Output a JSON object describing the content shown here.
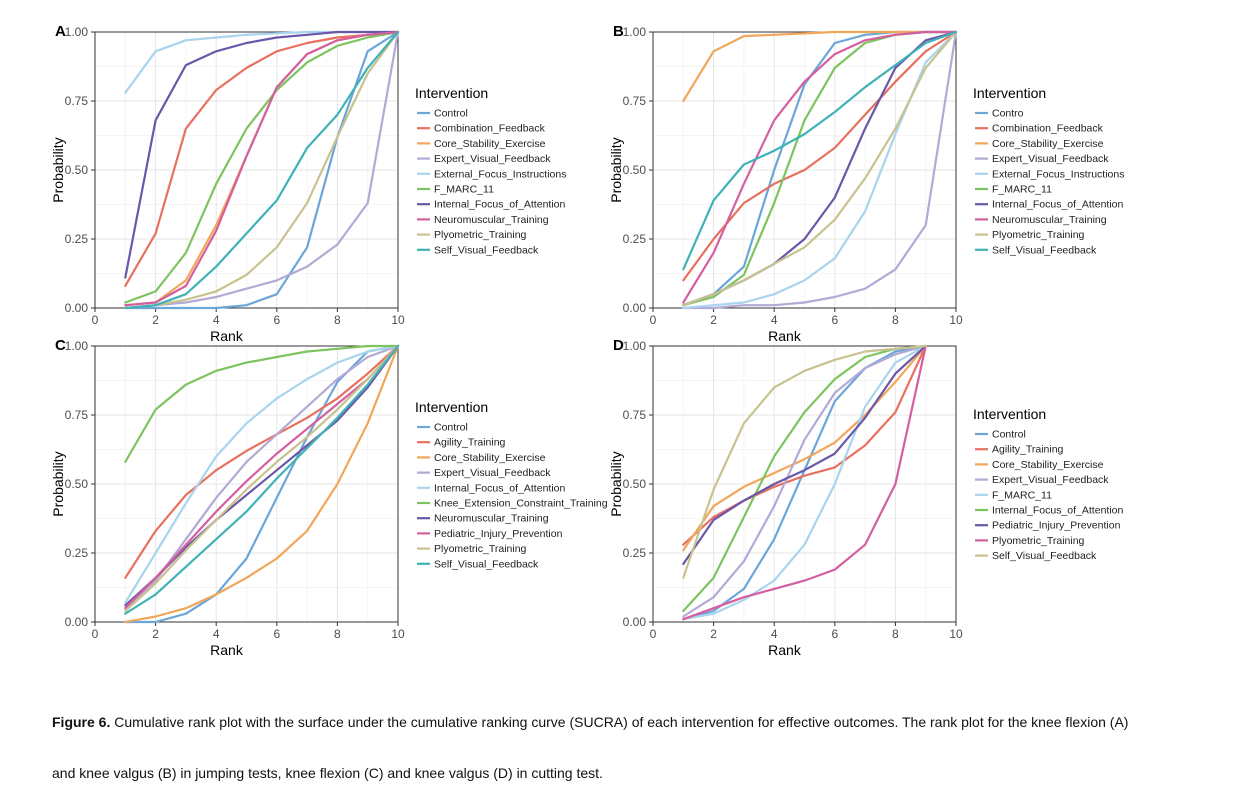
{
  "figure": {
    "label": "Figure 6.",
    "caption_line1": "Cumulative rank plot with the surface under the cumulative ranking curve (SUCRA) of each intervention for effective outcomes. The rank plot for the knee flexion (A)",
    "caption_line2": "and knee valgus (B) in jumping tests, knee flexion (C) and knee valgus (D) in cutting test."
  },
  "chart_data": [
    {
      "panel": "A",
      "type": "line",
      "xlabel": "Rank",
      "ylabel": "Probability",
      "xlim": [
        0,
        10
      ],
      "ylim": [
        0,
        1
      ],
      "xticks": [
        0,
        2,
        4,
        6,
        8,
        10
      ],
      "yticks": [
        "0.00",
        "0.25",
        "0.50",
        "0.75",
        "1.00"
      ],
      "legend_title": "Intervention",
      "x": [
        1,
        2,
        3,
        4,
        5,
        6,
        7,
        8,
        9,
        10
      ],
      "series": [
        {
          "name": "Control",
          "color": "#6aa6d8",
          "values": [
            0.0,
            0.0,
            0.0,
            0.0,
            0.01,
            0.05,
            0.22,
            0.62,
            0.93,
            1.0
          ]
        },
        {
          "name": "Combination_Feedback",
          "color": "#e8705f",
          "values": [
            0.08,
            0.27,
            0.65,
            0.79,
            0.87,
            0.93,
            0.96,
            0.98,
            0.99,
            1.0
          ]
        },
        {
          "name": "Core_Stability_Exercise",
          "color": "#f2a65a",
          "values": [
            0.01,
            0.02,
            0.1,
            0.3,
            0.55,
            0.8,
            0.92,
            0.97,
            0.99,
            1.0
          ]
        },
        {
          "name": "Expert_Visual_Feedback",
          "color": "#b2a9d6",
          "values": [
            0.0,
            0.01,
            0.02,
            0.04,
            0.07,
            0.1,
            0.15,
            0.23,
            0.38,
            1.0
          ]
        },
        {
          "name": "External_Focus_Instructions",
          "color": "#a8d4ee",
          "values": [
            0.78,
            0.93,
            0.97,
            0.98,
            0.99,
            0.995,
            1.0,
            1.0,
            1.0,
            1.0
          ]
        },
        {
          "name": "F_MARC_11",
          "color": "#7dc460",
          "values": [
            0.02,
            0.06,
            0.2,
            0.45,
            0.65,
            0.79,
            0.89,
            0.95,
            0.98,
            1.0
          ]
        },
        {
          "name": "Internal_Focus_of_Attention",
          "color": "#6b57a8",
          "values": [
            0.11,
            0.68,
            0.88,
            0.93,
            0.96,
            0.98,
            0.99,
            1.0,
            1.0,
            1.0
          ]
        },
        {
          "name": "Neuromuscular_Training",
          "color": "#d45fa0",
          "values": [
            0.01,
            0.02,
            0.08,
            0.28,
            0.55,
            0.8,
            0.92,
            0.97,
            0.99,
            1.0
          ]
        },
        {
          "name": "Plyometric_Training",
          "color": "#c8c28e",
          "values": [
            0.0,
            0.01,
            0.03,
            0.06,
            0.12,
            0.22,
            0.38,
            0.62,
            0.85,
            1.0
          ]
        },
        {
          "name": "Self_Visual_Feedback",
          "color": "#3fb2b8",
          "values": [
            0.0,
            0.01,
            0.05,
            0.15,
            0.27,
            0.39,
            0.58,
            0.7,
            0.87,
            1.0
          ]
        }
      ]
    },
    {
      "panel": "B",
      "type": "line",
      "xlabel": "Rank",
      "ylabel": "Probability",
      "xlim": [
        0,
        10
      ],
      "ylim": [
        0,
        1
      ],
      "xticks": [
        0,
        2,
        4,
        6,
        8,
        10
      ],
      "yticks": [
        "0.00",
        "0.25",
        "0.50",
        "0.75",
        "1.00"
      ],
      "legend_title": "Intervention",
      "x": [
        1,
        2,
        3,
        4,
        5,
        6,
        7,
        8,
        9,
        10
      ],
      "series": [
        {
          "name": "Contro",
          "color": "#6aa6d8",
          "values": [
            0.01,
            0.05,
            0.15,
            0.5,
            0.81,
            0.96,
            0.99,
            1.0,
            1.0,
            1.0
          ]
        },
        {
          "name": "Combination_Feedback",
          "color": "#e8705f",
          "values": [
            0.1,
            0.25,
            0.38,
            0.45,
            0.5,
            0.58,
            0.7,
            0.82,
            0.93,
            1.0
          ]
        },
        {
          "name": "Core_Stability_Exercise",
          "color": "#f2a65a",
          "values": [
            0.75,
            0.93,
            0.985,
            0.99,
            0.995,
            1.0,
            1.0,
            1.0,
            1.0,
            1.0
          ]
        },
        {
          "name": "Expert_Visual_Feedback",
          "color": "#b2a9d6",
          "values": [
            0.0,
            0.0,
            0.01,
            0.01,
            0.02,
            0.04,
            0.07,
            0.14,
            0.3,
            1.0
          ]
        },
        {
          "name": "External_Focus_Instructions",
          "color": "#a8d4ee",
          "values": [
            0.0,
            0.01,
            0.02,
            0.05,
            0.1,
            0.18,
            0.35,
            0.63,
            0.89,
            1.0
          ]
        },
        {
          "name": "F_MARC_11",
          "color": "#7dc460",
          "values": [
            0.01,
            0.04,
            0.12,
            0.38,
            0.68,
            0.87,
            0.96,
            0.99,
            1.0,
            1.0
          ]
        },
        {
          "name": "Internal_Focus_of_Attention",
          "color": "#6b57a8",
          "values": [
            0.01,
            0.05,
            0.1,
            0.16,
            0.25,
            0.4,
            0.65,
            0.87,
            0.97,
            1.0
          ]
        },
        {
          "name": "Neuromuscular_Training",
          "color": "#d45fa0",
          "values": [
            0.02,
            0.2,
            0.45,
            0.68,
            0.82,
            0.92,
            0.97,
            0.99,
            1.0,
            1.0
          ]
        },
        {
          "name": "Plyometric_Training",
          "color": "#c8c28e",
          "values": [
            0.01,
            0.05,
            0.1,
            0.16,
            0.22,
            0.32,
            0.47,
            0.65,
            0.87,
            1.0
          ]
        },
        {
          "name": "Self_Visual_Feedback",
          "color": "#3fb2b8",
          "values": [
            0.14,
            0.39,
            0.52,
            0.57,
            0.63,
            0.71,
            0.8,
            0.88,
            0.96,
            1.0
          ]
        }
      ]
    },
    {
      "panel": "C",
      "type": "line",
      "xlabel": "Rank",
      "ylabel": "Probability",
      "xlim": [
        0,
        10
      ],
      "ylim": [
        0,
        1
      ],
      "xticks": [
        0,
        2,
        4,
        6,
        8,
        10
      ],
      "yticks": [
        "0.00",
        "0.25",
        "0.50",
        "0.75",
        "1.00"
      ],
      "legend_title": "Intervention",
      "x": [
        1,
        2,
        3,
        4,
        5,
        6,
        7,
        8,
        9,
        10
      ],
      "series": [
        {
          "name": "Control",
          "color": "#6aa6d8",
          "values": [
            0.0,
            0.0,
            0.03,
            0.1,
            0.23,
            0.45,
            0.67,
            0.87,
            0.98,
            1.0
          ]
        },
        {
          "name": "Agility_Training",
          "color": "#e8705f",
          "values": [
            0.16,
            0.33,
            0.46,
            0.55,
            0.62,
            0.68,
            0.74,
            0.81,
            0.9,
            1.0
          ]
        },
        {
          "name": "Core_Stability_Exercise",
          "color": "#f2a65a",
          "values": [
            0.0,
            0.02,
            0.05,
            0.1,
            0.16,
            0.23,
            0.33,
            0.5,
            0.72,
            1.0
          ]
        },
        {
          "name": "Expert_Visual_Feedback",
          "color": "#b2a9d6",
          "values": [
            0.05,
            0.15,
            0.3,
            0.45,
            0.58,
            0.68,
            0.78,
            0.88,
            0.96,
            1.0
          ]
        },
        {
          "name": "Internal_Focus_of_Attention",
          "color": "#a8d4ee",
          "values": [
            0.07,
            0.25,
            0.43,
            0.6,
            0.72,
            0.81,
            0.88,
            0.94,
            0.98,
            1.0
          ]
        },
        {
          "name": "Knee_Extension_Constraint_Training",
          "color": "#7dc460",
          "values": [
            0.58,
            0.77,
            0.86,
            0.91,
            0.94,
            0.96,
            0.98,
            0.99,
            1.0,
            1.0
          ]
        },
        {
          "name": "Neuromuscular_Training",
          "color": "#6b57a8",
          "values": [
            0.06,
            0.16,
            0.27,
            0.37,
            0.46,
            0.55,
            0.64,
            0.73,
            0.85,
            1.0
          ]
        },
        {
          "name": "Pediatric_Injury_Prevention",
          "color": "#d45fa0",
          "values": [
            0.05,
            0.16,
            0.28,
            0.4,
            0.51,
            0.61,
            0.7,
            0.79,
            0.88,
            1.0
          ]
        },
        {
          "name": "Plyometric_Training",
          "color": "#c8c28e",
          "values": [
            0.04,
            0.14,
            0.26,
            0.37,
            0.48,
            0.58,
            0.67,
            0.77,
            0.88,
            1.0
          ]
        },
        {
          "name": "Self_Visual_Feedback",
          "color": "#3fb2b8",
          "values": [
            0.03,
            0.1,
            0.2,
            0.3,
            0.4,
            0.52,
            0.63,
            0.74,
            0.86,
            1.0
          ]
        }
      ]
    },
    {
      "panel": "D",
      "type": "line",
      "xlabel": "Rank",
      "ylabel": "Probability",
      "xlim": [
        0,
        10
      ],
      "ylim": [
        0,
        1
      ],
      "xticks": [
        0,
        2,
        4,
        6,
        8,
        10
      ],
      "yticks": [
        "0.00",
        "0.25",
        "0.50",
        "0.75",
        "1.00"
      ],
      "legend_title": "Intervention",
      "x": [
        1,
        2,
        3,
        4,
        5,
        6,
        7,
        8,
        9
      ],
      "series": [
        {
          "name": "Control",
          "color": "#6aa6d8",
          "values": [
            0.01,
            0.04,
            0.12,
            0.3,
            0.55,
            0.8,
            0.92,
            0.98,
            1.0
          ]
        },
        {
          "name": "Agility_Training",
          "color": "#e8705f",
          "values": [
            0.28,
            0.38,
            0.44,
            0.49,
            0.53,
            0.56,
            0.64,
            0.76,
            1.0
          ]
        },
        {
          "name": "Core_Stability_Exercise",
          "color": "#f2a65a",
          "values": [
            0.26,
            0.42,
            0.49,
            0.54,
            0.59,
            0.65,
            0.75,
            0.87,
            1.0
          ]
        },
        {
          "name": "Expert_Visual_Feedback",
          "color": "#b2a9d6",
          "values": [
            0.02,
            0.09,
            0.22,
            0.42,
            0.66,
            0.83,
            0.92,
            0.97,
            1.0
          ]
        },
        {
          "name": "F_MARC_11",
          "color": "#a8d4ee",
          "values": [
            0.01,
            0.03,
            0.08,
            0.15,
            0.28,
            0.5,
            0.78,
            0.94,
            1.0
          ]
        },
        {
          "name": "Internal_Focus_of_Attention",
          "color": "#7dc460",
          "values": [
            0.04,
            0.16,
            0.38,
            0.6,
            0.76,
            0.88,
            0.96,
            0.99,
            1.0
          ]
        },
        {
          "name": "Pediatric_Injury_Prevention",
          "color": "#6b57a8",
          "values": [
            0.21,
            0.37,
            0.44,
            0.5,
            0.55,
            0.61,
            0.74,
            0.9,
            1.0
          ]
        },
        {
          "name": "Plyometric_Training",
          "color": "#d45fa0",
          "values": [
            0.01,
            0.05,
            0.09,
            0.12,
            0.15,
            0.19,
            0.28,
            0.5,
            1.0
          ]
        },
        {
          "name": "Self_Visual_Feedback",
          "color": "#c8c28e",
          "values": [
            0.16,
            0.48,
            0.72,
            0.85,
            0.91,
            0.95,
            0.98,
            0.99,
            1.0
          ]
        }
      ]
    }
  ]
}
